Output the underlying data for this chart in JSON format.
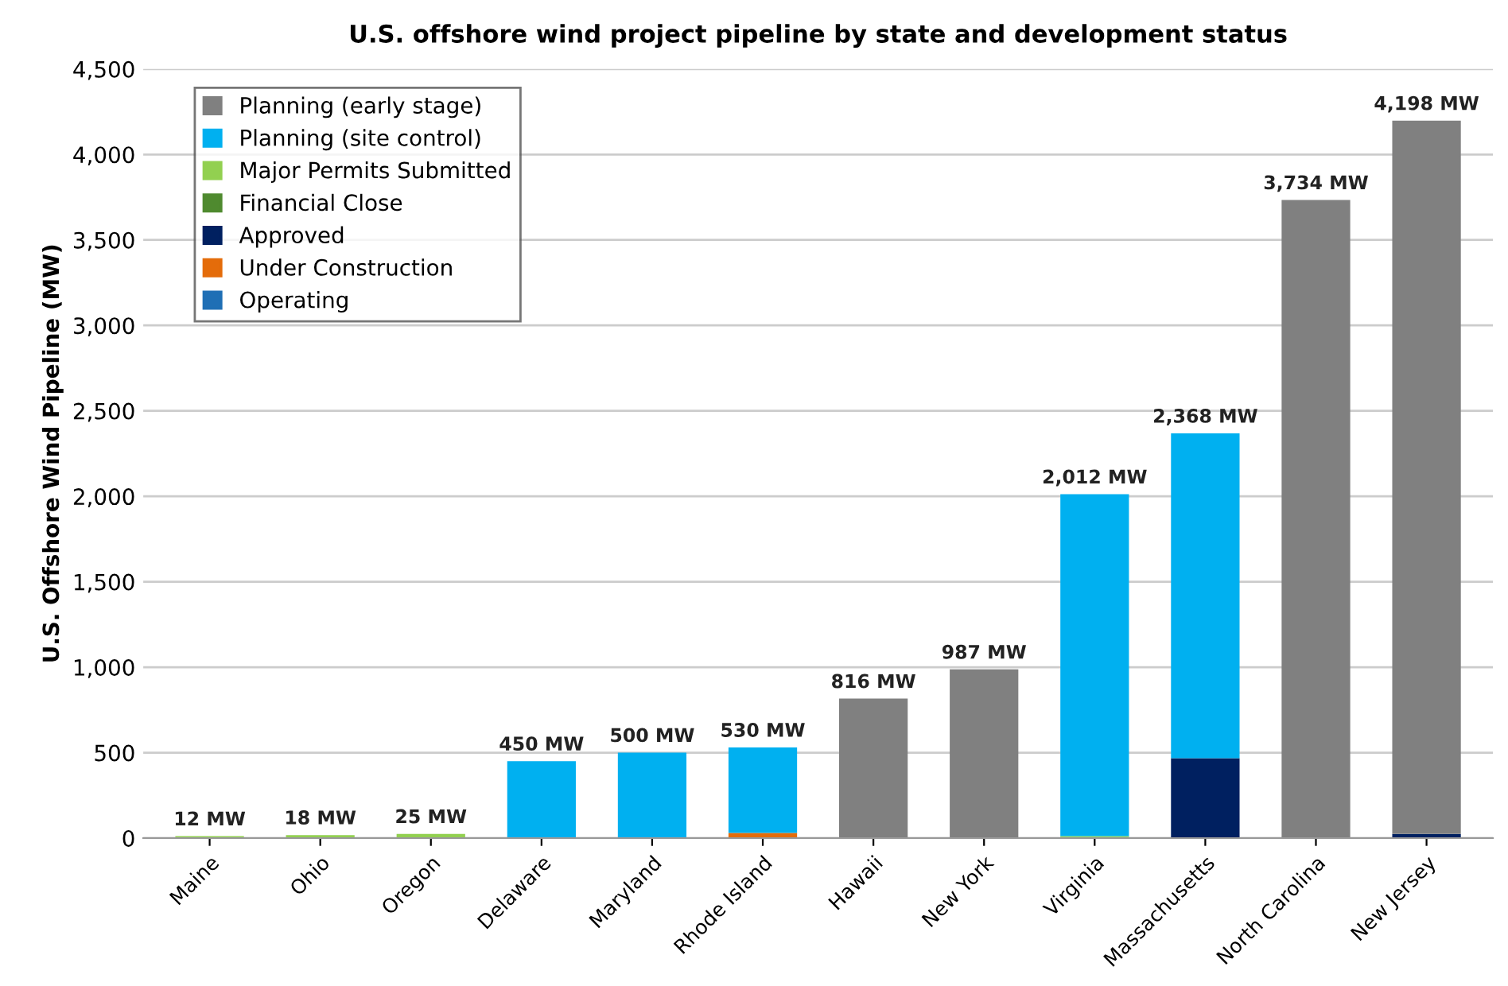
{
  "chart_data": {
    "type": "bar",
    "stacked": true,
    "title": "U.S. offshore wind project pipeline by state and development status",
    "ylabel": "U.S. Offshore Wind Pipeline (MW)",
    "categories": [
      "Maine",
      "Ohio",
      "Oregon",
      "Delaware",
      "Maryland",
      "Rhode Island",
      "Hawaii",
      "New York",
      "Virginia",
      "Massachusetts",
      "North Carolina",
      "New Jersey"
    ],
    "series": [
      {
        "name": "Operating",
        "color": "#1f6fb5",
        "values": [
          null,
          null,
          null,
          null,
          null,
          null,
          null,
          null,
          null,
          null,
          null,
          null
        ]
      },
      {
        "name": "Under Construction",
        "color": "#e46c0a",
        "values": [
          null,
          null,
          null,
          null,
          null,
          30,
          null,
          null,
          null,
          null,
          null,
          null
        ]
      },
      {
        "name": "Approved",
        "color": "#002060",
        "values": [
          null,
          null,
          null,
          null,
          null,
          null,
          null,
          null,
          null,
          468,
          null,
          25
        ]
      },
      {
        "name": "Financial Close",
        "color": "#4f8a2f",
        "values": [
          null,
          null,
          null,
          null,
          null,
          null,
          null,
          null,
          null,
          null,
          null,
          null
        ]
      },
      {
        "name": "Major Permits Submitted",
        "color": "#92d050",
        "values": [
          12,
          18,
          25,
          null,
          null,
          null,
          null,
          null,
          12,
          null,
          null,
          null
        ]
      },
      {
        "name": "Planning (site control)",
        "color": "#00b0f0",
        "values": [
          null,
          null,
          null,
          450,
          500,
          500,
          null,
          null,
          2000,
          1900,
          null,
          null
        ]
      },
      {
        "name": "Planning (early stage)",
        "color": "#808080",
        "values": [
          null,
          null,
          null,
          null,
          null,
          null,
          816,
          987,
          null,
          null,
          3734,
          4173
        ]
      }
    ],
    "totals": [
      "12 MW",
      "18 MW",
      "25 MW",
      "450 MW",
      "500 MW",
      "530 MW",
      "816 MW",
      "987 MW",
      "2,012 MW",
      "2,368 MW",
      "3,734 MW",
      "4,198 MW"
    ],
    "ylim": [
      0,
      4500
    ],
    "yticks": [
      0,
      500,
      {
        "value": 1000,
        "label": "1,000"
      },
      {
        "value": 1500,
        "label": "1,500"
      },
      {
        "value": 2000,
        "label": "2,000"
      },
      {
        "value": 2500,
        "label": "2,500"
      },
      {
        "value": 3000,
        "label": "3,000"
      },
      {
        "value": 3500,
        "label": "3,500"
      },
      {
        "value": 4000,
        "label": "4,000"
      },
      {
        "value": 4500,
        "label": "4,500"
      }
    ],
    "grid": "y",
    "legend": "top left"
  }
}
